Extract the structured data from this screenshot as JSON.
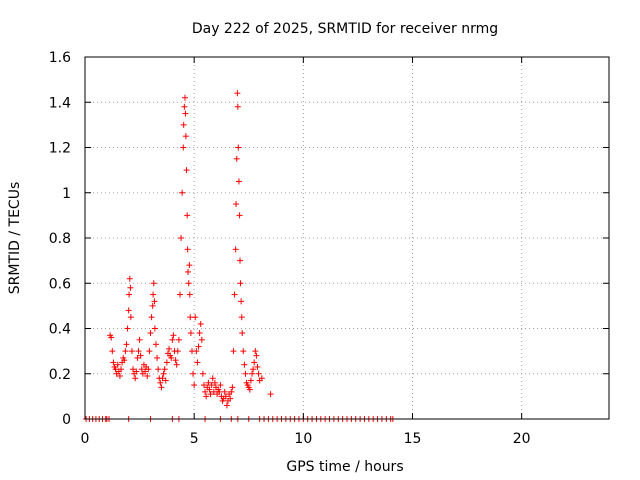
{
  "chart_data": {
    "type": "scatter",
    "title": "Day 222 of 2025, SRMTID for receiver nrmg",
    "xlabel": "GPS time / hours",
    "ylabel": "SRMTID / TECUs",
    "xlim": [
      0,
      24
    ],
    "ylim": [
      0,
      1.6
    ],
    "x_ticks": [
      0,
      5,
      10,
      15,
      20
    ],
    "x_tick_labels": [
      "0",
      "5",
      "10",
      "15",
      "20"
    ],
    "y_ticks": [
      0,
      0.2,
      0.4,
      0.6,
      0.8,
      1.0,
      1.2,
      1.4,
      1.6
    ],
    "y_tick_labels": [
      "0",
      "0.2",
      "0.4",
      "0.6",
      "0.8",
      "1",
      "1.2",
      "1.4",
      "1.6"
    ],
    "grid": true,
    "marker": "+",
    "marker_color": "#ff0000",
    "series": [
      {
        "name": "SRMTID",
        "x": [
          0.05,
          0.2,
          0.35,
          0.5,
          0.65,
          0.8,
          0.95,
          1.1,
          1.15,
          1.2,
          1.25,
          1.3,
          1.35,
          1.4,
          1.45,
          1.5,
          1.55,
          1.6,
          1.65,
          1.7,
          1.75,
          1.8,
          1.85,
          1.9,
          1.95,
          2.0,
          2.02,
          2.05,
          2.08,
          2.1,
          2.15,
          2.2,
          2.25,
          2.3,
          2.35,
          2.4,
          2.45,
          2.5,
          2.55,
          2.6,
          2.65,
          2.7,
          2.75,
          2.8,
          2.85,
          2.9,
          2.95,
          3.0,
          3.05,
          3.1,
          3.12,
          3.15,
          3.18,
          3.2,
          3.25,
          3.3,
          3.35,
          3.4,
          3.45,
          3.5,
          3.55,
          3.6,
          3.65,
          3.7,
          3.75,
          3.8,
          3.85,
          3.9,
          3.95,
          4.0,
          4.05,
          4.1,
          4.15,
          4.2,
          4.25,
          4.3,
          4.35,
          4.4,
          4.45,
          4.5,
          4.52,
          4.55,
          4.58,
          4.6,
          4.62,
          4.65,
          4.68,
          4.7,
          4.72,
          4.75,
          4.78,
          4.8,
          4.82,
          4.85,
          4.9,
          4.95,
          5.0,
          5.05,
          5.1,
          5.15,
          5.2,
          5.25,
          5.3,
          5.35,
          5.4,
          5.45,
          5.5,
          5.55,
          5.6,
          5.65,
          5.7,
          5.75,
          5.8,
          5.85,
          5.9,
          5.95,
          6.0,
          6.05,
          6.1,
          6.15,
          6.2,
          6.25,
          6.3,
          6.35,
          6.4,
          6.45,
          6.5,
          6.55,
          6.6,
          6.65,
          6.7,
          6.75,
          6.8,
          6.85,
          6.9,
          6.92,
          6.95,
          6.98,
          7.0,
          7.02,
          7.05,
          7.08,
          7.1,
          7.12,
          7.15,
          7.18,
          7.2,
          7.25,
          7.3,
          7.35,
          7.4,
          7.45,
          7.5,
          7.55,
          7.6,
          7.65,
          7.7,
          7.75,
          7.8,
          7.85,
          7.9,
          7.95,
          8.0,
          8.1,
          8.5,
          1.0,
          2.0,
          3.0,
          4.0,
          4.3,
          5.5,
          6.2,
          6.7,
          7.0,
          7.5,
          8.0,
          8.2,
          8.4,
          8.6,
          8.8,
          9.0,
          9.2,
          9.4,
          9.6,
          9.8,
          10.0,
          10.2,
          10.4,
          10.6,
          10.8,
          11.0,
          11.2,
          11.4,
          11.6,
          11.8,
          12.0,
          12.2,
          12.4,
          12.6,
          12.8,
          13.0,
          13.2,
          13.4,
          13.6,
          13.8,
          14.0,
          14.1
        ],
        "y": [
          0,
          0,
          0,
          0,
          0,
          0,
          0,
          0,
          0.37,
          0.36,
          0.3,
          0.25,
          0.23,
          0.22,
          0.2,
          0.24,
          0.21,
          0.19,
          0.22,
          0.25,
          0.27,
          0.26,
          0.3,
          0.33,
          0.4,
          0.48,
          0.55,
          0.62,
          0.58,
          0.45,
          0.3,
          0.22,
          0.2,
          0.18,
          0.21,
          0.27,
          0.3,
          0.35,
          0.28,
          0.22,
          0.2,
          0.24,
          0.21,
          0.23,
          0.19,
          0.22,
          0.3,
          0.38,
          0.45,
          0.5,
          0.55,
          0.6,
          0.52,
          0.4,
          0.33,
          0.27,
          0.22,
          0.18,
          0.16,
          0.14,
          0.18,
          0.2,
          0.22,
          0.17,
          0.25,
          0.29,
          0.31,
          0.28,
          0.27,
          0.35,
          0.37,
          0.3,
          0.26,
          0.24,
          0.3,
          0.35,
          0.55,
          0.8,
          1.0,
          1.2,
          1.3,
          1.38,
          1.42,
          1.35,
          1.25,
          1.1,
          0.9,
          0.75,
          0.65,
          0.6,
          0.68,
          0.55,
          0.45,
          0.38,
          0.3,
          0.2,
          0.15,
          0.45,
          0.3,
          0.25,
          0.32,
          0.38,
          0.42,
          0.35,
          0.2,
          0.15,
          0.12,
          0.1,
          0.14,
          0.16,
          0.13,
          0.11,
          0.15,
          0.18,
          0.12,
          0.16,
          0.14,
          0.11,
          0.13,
          0.12,
          0.15,
          0.1,
          0.08,
          0.09,
          0.12,
          0.1,
          0.06,
          0.08,
          0.11,
          0.09,
          0.12,
          0.14,
          0.3,
          0.55,
          0.75,
          0.95,
          1.15,
          1.44,
          1.38,
          1.2,
          1.05,
          0.9,
          0.7,
          0.6,
          0.52,
          0.45,
          0.38,
          0.3,
          0.24,
          0.2,
          0.16,
          0.15,
          0.14,
          0.13,
          0.17,
          0.2,
          0.22,
          0.25,
          0.3,
          0.28,
          0.23,
          0.2,
          0.17,
          0.18,
          0.11,
          0,
          0,
          0,
          0,
          0,
          0,
          0,
          0,
          0,
          0,
          0,
          0,
          0,
          0,
          0,
          0,
          0,
          0,
          0,
          0,
          0,
          0,
          0,
          0,
          0,
          0,
          0,
          0,
          0,
          0,
          0,
          0,
          0,
          0,
          0,
          0,
          0,
          0,
          0,
          0,
          0,
          0
        ]
      }
    ]
  }
}
